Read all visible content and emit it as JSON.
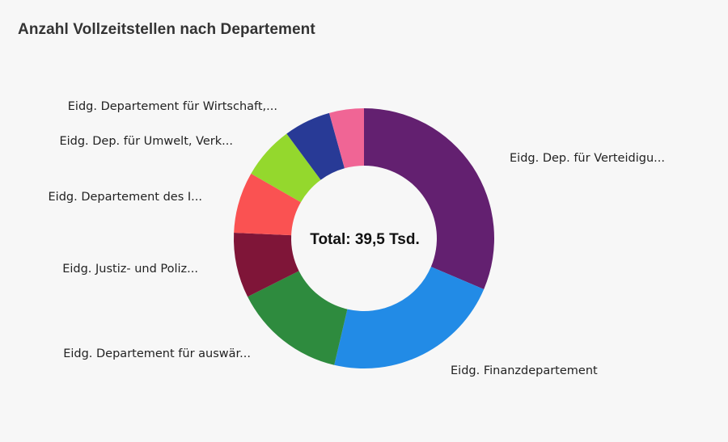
{
  "chart_data": {
    "type": "pie",
    "title": "Anzahl Vollzeitstellen nach Departement",
    "center_label": "Total: 39,5 Tsd.",
    "unit": "Tsd.",
    "donut": true,
    "slices": [
      {
        "label": "Eidg. Dep. für Verteidigu...",
        "value": 12.4,
        "color": "#632070"
      },
      {
        "label": "Eidg. Finanzdepartement",
        "value": 8.8,
        "color": "#228be6"
      },
      {
        "label": "Eidg. Departement für auswär...",
        "value": 5.5,
        "color": "#2e8b3e"
      },
      {
        "label": "Eidg. Justiz- und Poliz...",
        "value": 3.2,
        "color": "#7f1538"
      },
      {
        "label": "Eidg. Departement des I...",
        "value": 3.0,
        "color": "#fa5252"
      },
      {
        "label": "Eidg. Dep. für Umwelt, Verk...",
        "value": 2.6,
        "color": "#94d82d"
      },
      {
        "label": "Eidg. Departement für Wirtschaft,...",
        "value": 2.3,
        "color": "#283a96"
      },
      {
        "label": "",
        "value": 1.7,
        "color": "#f06595"
      }
    ]
  }
}
